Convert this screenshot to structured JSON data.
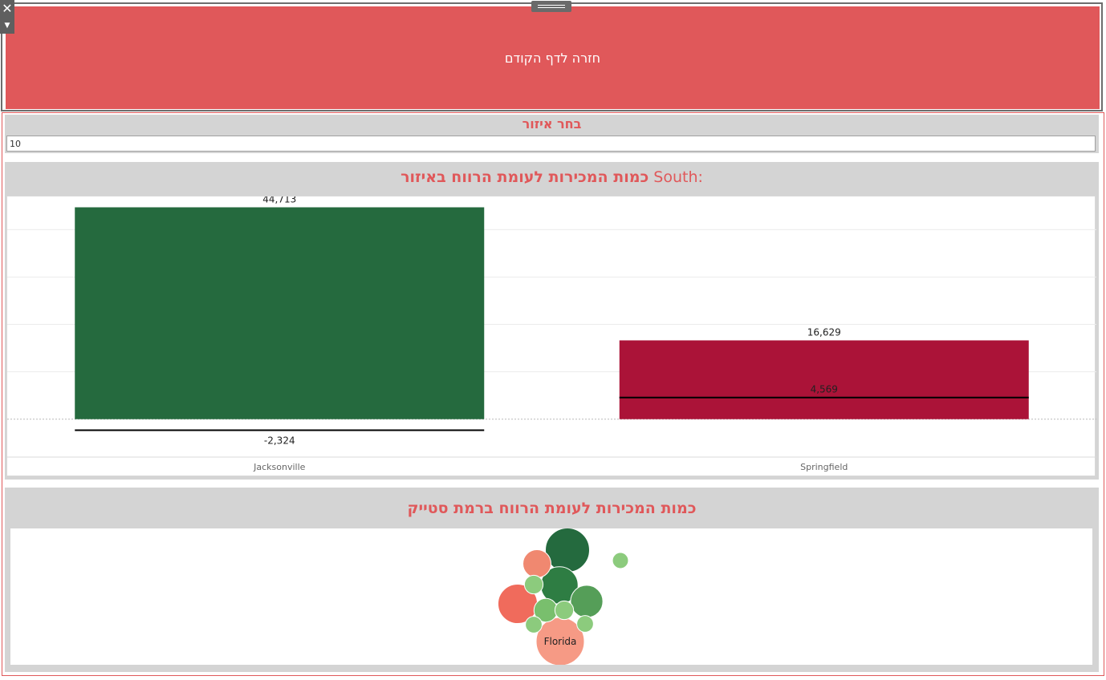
{
  "header": {
    "back_label": "חזרה לדף הקודם",
    "color": "#e0585a"
  },
  "toolbar": {
    "close_icon": "close-icon",
    "more_icon": "caret-down-icon",
    "drag_icon": "drag-handle-icon"
  },
  "filter": {
    "title": "בחר איזור",
    "value": "10"
  },
  "bar_chart": {
    "title_strong": "כמות המכירות לעומת הרווח באיזור",
    "title_region": "South:"
  },
  "bubble_chart": {
    "title": "כמות המכירות לעומת הרווח ברמת סטייק"
  },
  "chart_data": [
    {
      "type": "bar",
      "title": "כמות המכירות לעומת הרווח באיזור South:",
      "categories": [
        "Jacksonville",
        "Springfield"
      ],
      "series": [
        {
          "name": "",
          "values": [
            44713,
            16629
          ],
          "colors": [
            "#256a3e",
            "#ab1338"
          ]
        },
        {
          "name": "",
          "values": [
            -2324,
            4569
          ],
          "mark": "reference-line"
        }
      ],
      "value_labels": [
        "44,713",
        "16,629"
      ],
      "reference_labels": [
        "-2,324",
        "4,569"
      ],
      "ylim": [
        -8000,
        47000
      ],
      "grid": true,
      "xlabel": "",
      "ylabel": ""
    },
    {
      "type": "scatter",
      "subtype": "packed-bubble",
      "title": "כמות המכירות לעומת הרווח ברמת סטייק",
      "bubbles": [
        {
          "label": "Florida",
          "size": 100,
          "color": "#f69a85"
        },
        {
          "label": "",
          "size": 84,
          "color": "#246a3e"
        },
        {
          "label": "",
          "size": 67,
          "color": "#f06b5c"
        },
        {
          "label": "",
          "size": 60,
          "color": "#2e7d43"
        },
        {
          "label": "",
          "size": 45,
          "color": "#559e58"
        },
        {
          "label": "",
          "size": 34,
          "color": "#f08870"
        },
        {
          "label": "",
          "size": 24,
          "color": "#79bf6d"
        },
        {
          "label": "",
          "size": 15,
          "color": "#8ccb7d"
        },
        {
          "label": "",
          "size": 15,
          "color": "#8ccb7d"
        },
        {
          "label": "",
          "size": 12,
          "color": "#8ccb7d"
        },
        {
          "label": "",
          "size": 12,
          "color": "#8ccb7d"
        },
        {
          "label": "",
          "size": 11,
          "color": "#8ccb7d"
        }
      ]
    }
  ]
}
